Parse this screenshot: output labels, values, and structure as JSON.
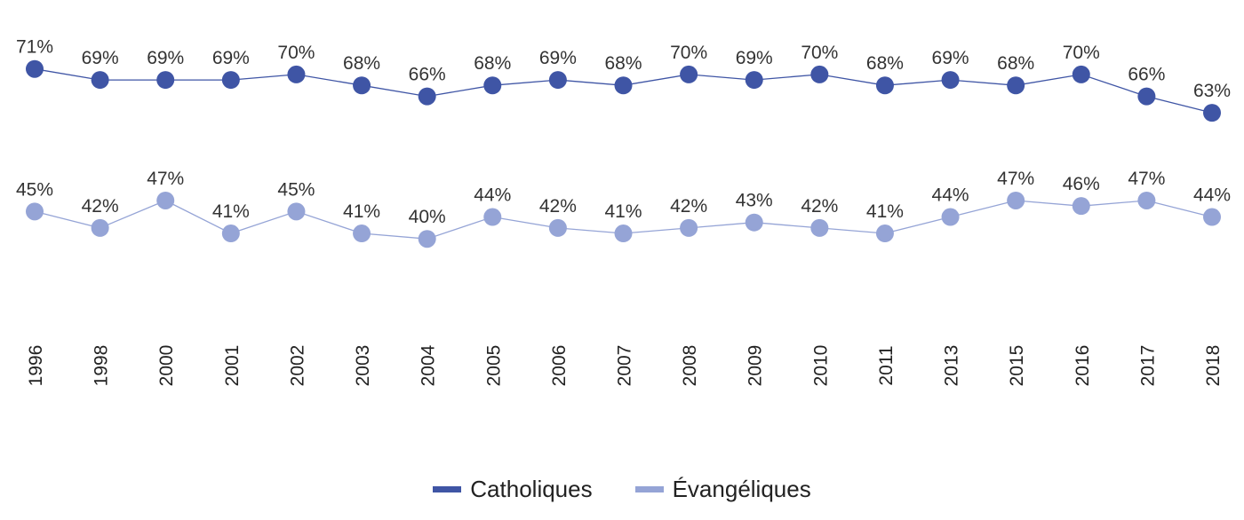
{
  "chart_data": {
    "type": "line",
    "title": "",
    "xlabel": "",
    "ylabel": "",
    "ylim": [
      30,
      75
    ],
    "grid": false,
    "legend_position": "bottom-center",
    "value_suffix": "%",
    "categories": [
      "1996",
      "1998",
      "2000",
      "2001",
      "2002",
      "2003",
      "2004",
      "2005",
      "2006",
      "2007",
      "2008",
      "2009",
      "2010",
      "2011",
      "2013",
      "2015",
      "2016",
      "2017",
      "2018"
    ],
    "series": [
      {
        "name": "Catholiques",
        "color": "#3f55a5",
        "values": [
          71,
          69,
          69,
          69,
          70,
          68,
          66,
          68,
          69,
          68,
          70,
          69,
          70,
          68,
          69,
          68,
          70,
          66,
          63
        ]
      },
      {
        "name": "Évangéliques",
        "color": "#95a4d6",
        "values": [
          45,
          42,
          47,
          41,
          45,
          41,
          40,
          44,
          42,
          41,
          42,
          43,
          42,
          41,
          44,
          47,
          46,
          47,
          44
        ]
      }
    ]
  }
}
